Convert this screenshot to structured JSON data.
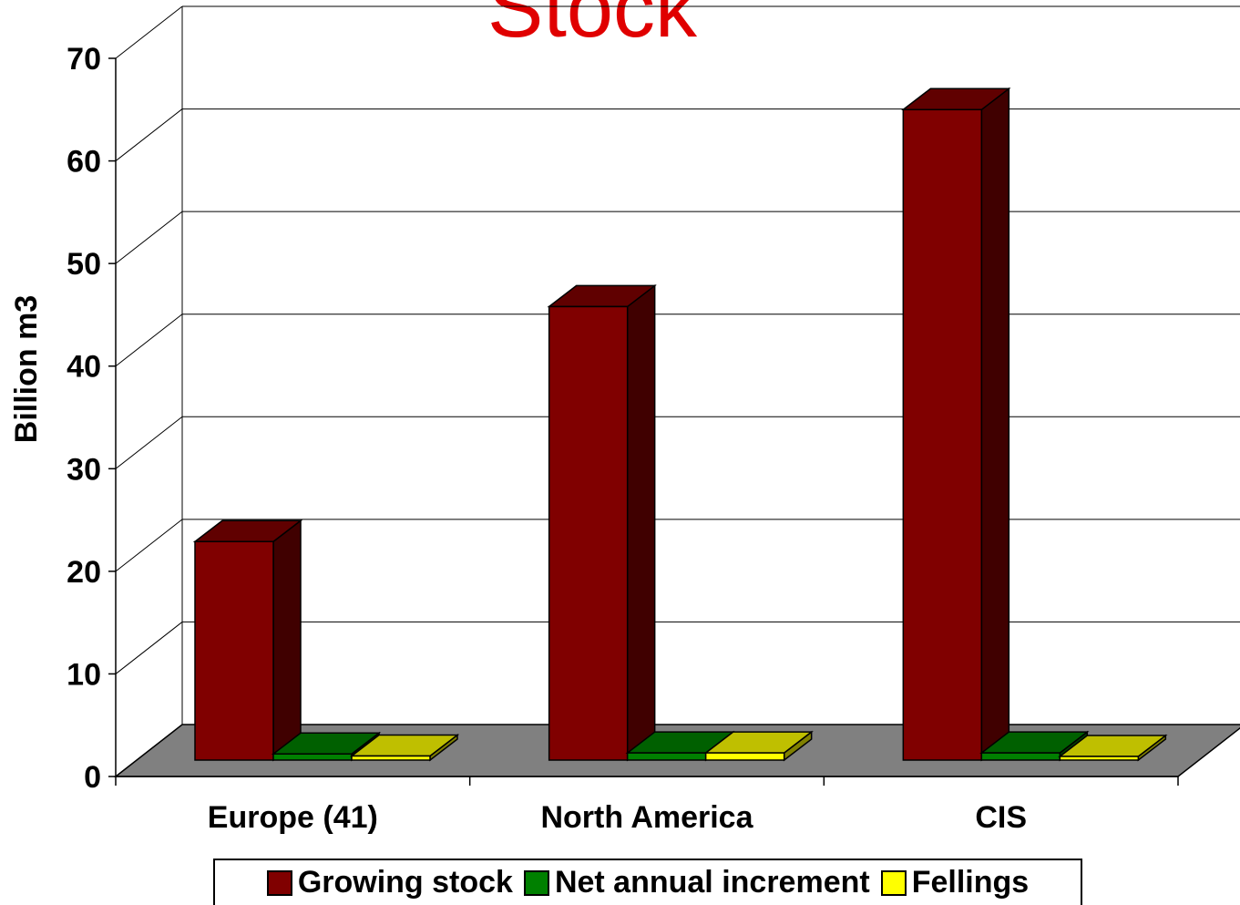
{
  "chart_data": {
    "type": "bar",
    "title": "Stock",
    "ylabel": "Billion m3",
    "xlabel": "",
    "ylim": [
      0,
      70
    ],
    "yticks": [
      "0",
      "10",
      "20",
      "30",
      "40",
      "50",
      "60",
      "70"
    ],
    "categories": [
      "Europe (41)",
      "North America",
      "CIS"
    ],
    "series": [
      {
        "name": "Growing stock",
        "values": [
          21.3,
          44.2,
          63.4
        ],
        "color": "#800000"
      },
      {
        "name": "Net annual increment",
        "values": [
          0.6,
          0.7,
          0.7
        ],
        "color": "#008000"
      },
      {
        "name": "Fellings",
        "values": [
          0.4,
          0.7,
          0.2
        ],
        "color": "#ffff00"
      }
    ],
    "grid": true,
    "legend": "bottom",
    "three_d": true
  }
}
